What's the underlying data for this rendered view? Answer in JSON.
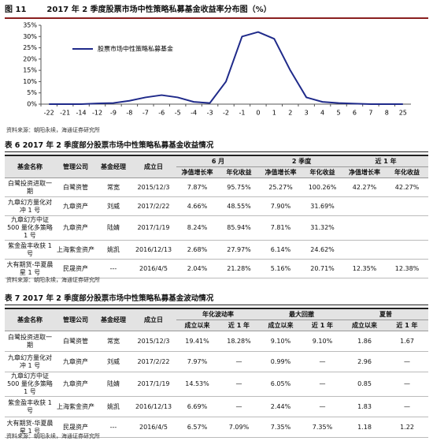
{
  "figure": {
    "label": "图 11",
    "title": "2017 年 2 季度股票市场中性策略私募基金收益率分布图（%）",
    "source": "资料来源：朝阳永续，海通证券研究所"
  },
  "chart_data": {
    "type": "line",
    "categories": [
      "-22",
      "-21",
      "-14",
      "-12",
      "-9",
      "-8",
      "-7",
      "-6",
      "-5",
      "-4",
      "-3",
      "-2",
      "-1",
      "0",
      "1",
      "2",
      "3",
      "4",
      "5",
      "6",
      "7",
      "8",
      "25"
    ],
    "series": [
      {
        "name": "股票市场中性策略私募基金",
        "color": "#1f2a8a",
        "values": [
          0,
          0,
          0,
          0.3,
          0.5,
          1.5,
          3,
          4,
          3,
          1,
          0.5,
          10,
          30,
          32,
          29,
          15,
          3,
          1,
          0.5,
          0.2,
          0,
          0,
          0
        ]
      }
    ],
    "ylim": [
      0,
      35
    ],
    "yticks": [
      {
        "value": 0,
        "label": "0%"
      },
      {
        "value": 5,
        "label": "5%"
      },
      {
        "value": 10,
        "label": "10%"
      },
      {
        "value": 15,
        "label": "15%"
      },
      {
        "value": 20,
        "label": "20%"
      },
      {
        "value": 25,
        "label": "25%"
      },
      {
        "value": 30,
        "label": "30%"
      },
      {
        "value": 35,
        "label": "35%"
      }
    ],
    "legend": "upper-left"
  },
  "table6": {
    "title": "表 6 2017 年 2 季度部分股票市场中性策略私募基金收益情况",
    "fixed_columns": [
      "基金名称",
      "管理公司",
      "基金经理",
      "成立日"
    ],
    "groups": [
      "6 月",
      "2 季度",
      "近 1 年"
    ],
    "sub_columns": [
      "净值增长率",
      "年化收益",
      "净值增长率",
      "年化收益",
      "净值增长率",
      "年化收益"
    ],
    "rows": [
      [
        "白鹭投资进取一期",
        "白鹭资管",
        "常宽",
        "2015/12/3",
        "7.87%",
        "95.75%",
        "25.27%",
        "100.26%",
        "42.27%",
        "42.27%"
      ],
      [
        "九章幻方量化对冲 1 号",
        "九章资产",
        "刘威",
        "2017/2/22",
        "4.66%",
        "48.55%",
        "7.90%",
        "31.69%",
        null,
        null
      ],
      [
        "九章幻方中证 500 量化多策略 1 号",
        "九章资产",
        "陆婧",
        "2017/1/19",
        "8.24%",
        "85.94%",
        "7.81%",
        "31.32%",
        null,
        null
      ],
      [
        "紫金盈丰收获 1 号",
        "上海紫金资产",
        "姚凯",
        "2016/12/13",
        "2.68%",
        "27.97%",
        "6.14%",
        "24.62%",
        null,
        null
      ],
      [
        "大有期货-华夏晨星 1 号",
        "民晟资产",
        "---",
        "2016/4/5",
        "2.04%",
        "21.28%",
        "5.16%",
        "20.71%",
        "12.35%",
        "12.38%"
      ]
    ],
    "source": "资料来源：朝阳永续，海通证券研究所"
  },
  "table7": {
    "title": "表 7 2017 年 2 季度部分股票市场中性策略私募基金波动情况",
    "fixed_columns": [
      "基金名称",
      "管理公司",
      "基金经理",
      "成立日"
    ],
    "groups": [
      "年化波动率",
      "最大回撤",
      "夏普"
    ],
    "sub_columns": [
      "成立以来",
      "近 1 年",
      "成立以来",
      "近 1 年",
      "成立以来",
      "近 1 年"
    ],
    "rows": [
      [
        "白鹭投资进取一期",
        "白鹭资管",
        "常宽",
        "2015/12/3",
        "19.41%",
        "18.28%",
        "9.10%",
        "9.10%",
        "1.86",
        "1.67"
      ],
      [
        "九章幻方量化对冲 1 号",
        "九章资产",
        "刘威",
        "2017/2/22",
        "7.97%",
        "—",
        "0.99%",
        "—",
        "2.96",
        "—"
      ],
      [
        "九章幻方中证 500 量化多策略 1 号",
        "九章资产",
        "陆婧",
        "2017/1/19",
        "14.53%",
        "—",
        "6.05%",
        "—",
        "0.85",
        "—"
      ],
      [
        "紫金盈丰收获 1 号",
        "上海紫金资产",
        "姚凯",
        "2016/12/13",
        "6.69%",
        "—",
        "2.44%",
        "—",
        "1.83",
        "—"
      ],
      [
        "大有期货-华夏晨星 1 号",
        "民晟资产",
        "---",
        "2016/4/5",
        "6.57%",
        "7.09%",
        "7.35%",
        "7.35%",
        "1.18",
        "1.22"
      ]
    ],
    "source": "资料来源：朝阳永续，海通证券研究所"
  }
}
